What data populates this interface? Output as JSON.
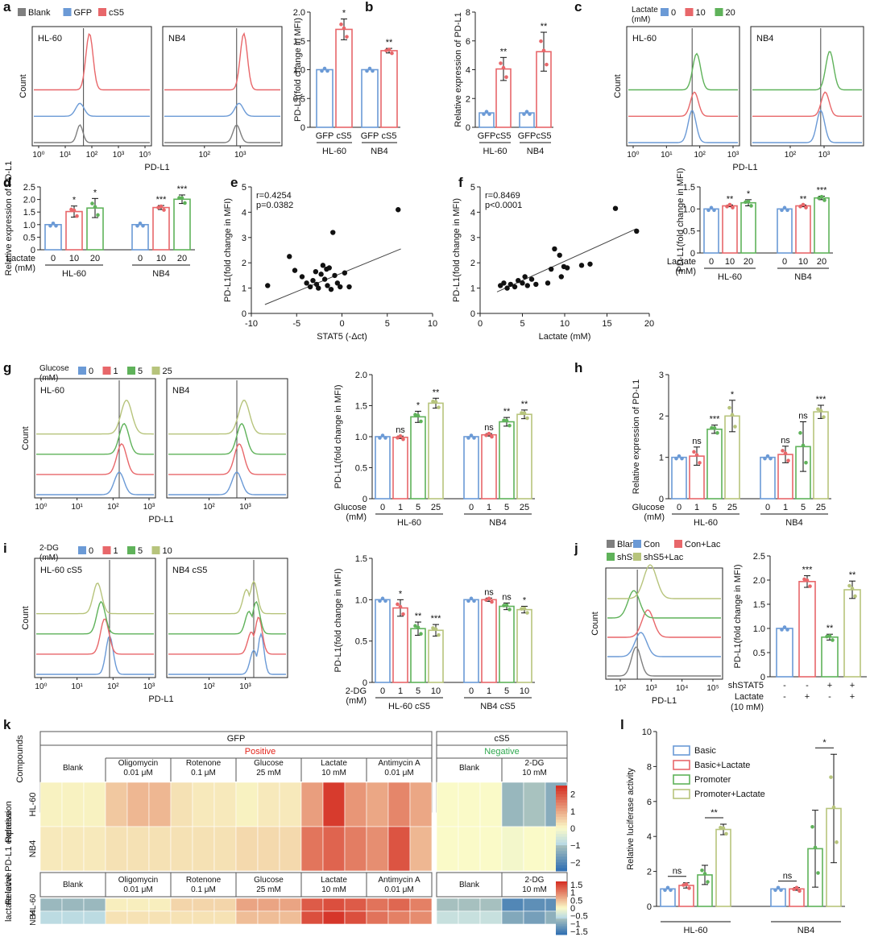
{
  "figure": {
    "panel_letters": [
      "a",
      "b",
      "c",
      "d",
      "e",
      "f",
      "g",
      "h",
      "i",
      "j",
      "k",
      "l"
    ]
  },
  "colors": {
    "blank": "#7f7f7f",
    "blue": "#6b9ad6",
    "red": "#e8676a",
    "green": "#5fb25a",
    "olive": "#b7c47c",
    "heat_high": "#d42a20",
    "heat_mid": "#fafac8",
    "heat_low": "#2e6eb2",
    "positive_text": "#e3241b",
    "negative_text": "#2fa84f"
  },
  "panel_a": {
    "legend": [
      "Blank",
      "GFP",
      "cS5"
    ],
    "cells": [
      "HL-60",
      "NB4"
    ],
    "y_label": "Count",
    "x_label": "PD-L1",
    "x_ticks_left": [
      "10⁰",
      "10¹",
      "10²",
      "10³",
      "10⁵"
    ],
    "x_ticks_right": [
      "10²",
      "10³"
    ]
  },
  "panel_c": {
    "legend_title": "Lactate\n(mM)",
    "legend": [
      "0",
      "10",
      "20"
    ],
    "cells": [
      "HL-60",
      "NB4"
    ],
    "y_label": "Count",
    "x_label": "PD-L1",
    "x_ticks_left": [
      "10⁰",
      "10¹",
      "10²",
      "10³"
    ],
    "x_ticks_right": [
      "10²",
      "10³"
    ]
  },
  "panel_g": {
    "legend_title": "Glucose\n(mM)",
    "legend": [
      "0",
      "1",
      "5",
      "25"
    ],
    "cells": [
      "HL-60",
      "NB4"
    ],
    "y_label": "Count",
    "x_label": "PD-L1",
    "x_ticks_left": [
      "10⁰",
      "10¹",
      "10²",
      "10³"
    ],
    "x_ticks_right": [
      "10²",
      "10³"
    ]
  },
  "panel_i": {
    "legend_title": "2-DG\n(mM)",
    "legend": [
      "0",
      "1",
      "5",
      "10"
    ],
    "cells": [
      "HL-60 cS5",
      "NB4 cS5"
    ],
    "y_label": "Count",
    "x_label": "PD-L1",
    "x_ticks_left": [
      "10⁰",
      "10¹",
      "10²",
      "10³"
    ],
    "x_ticks_right": [
      "10²",
      "10³"
    ]
  },
  "panel_j": {
    "legend": [
      "Blank",
      "Con",
      "Con+Lac",
      "shS5",
      "shS5+Lac"
    ],
    "y_label": "Count",
    "x_label": "PD-L1",
    "x_ticks": [
      "10²",
      "10³",
      "10⁴",
      "10⁵"
    ]
  },
  "chart_data": [
    {
      "id": "a_bar",
      "type": "bar",
      "ylabel": "PD-L1(fold change in MFI)",
      "ylim": [
        0,
        2.0
      ],
      "yticks": [
        "0",
        "0.5",
        "1.0",
        "1.5",
        "2.0"
      ],
      "groups": [
        {
          "name": "HL-60",
          "categories": [
            "GFP",
            "cS5"
          ]
        },
        {
          "name": "NB4",
          "categories": [
            "GFP",
            "cS5"
          ]
        }
      ],
      "values": [
        1.0,
        1.7,
        1.0,
        1.33
      ],
      "errors": [
        0,
        0.18,
        0,
        0.04
      ],
      "significance": [
        "",
        "*",
        "",
        "**"
      ]
    },
    {
      "id": "b_bar",
      "type": "bar",
      "ylabel": "Relative expression of PD-L1",
      "ylim": [
        0,
        8
      ],
      "yticks": [
        "0",
        "2",
        "4",
        "6",
        "8"
      ],
      "groups": [
        {
          "name": "HL-60",
          "categories": [
            "GFP",
            "cS5"
          ]
        },
        {
          "name": "NB4",
          "categories": [
            "GFP",
            "cS5"
          ]
        }
      ],
      "values": [
        1.0,
        4.05,
        1.0,
        5.25
      ],
      "errors": [
        0,
        0.8,
        0,
        1.35
      ],
      "significance": [
        "",
        "**",
        "",
        "**"
      ]
    },
    {
      "id": "d_bar",
      "type": "bar",
      "ylabel": "Relative expression of PD-L1",
      "ylim": [
        0,
        2.5
      ],
      "yticks": [
        "0",
        "0.5",
        "1.0",
        "1.5",
        "2.0",
        "2.5"
      ],
      "row_label": "Lactate\n(mM)",
      "groups": [
        {
          "name": "HL-60",
          "categories": [
            "0",
            "10",
            "20"
          ]
        },
        {
          "name": "NB4",
          "categories": [
            "0",
            "10",
            "20"
          ]
        }
      ],
      "values": [
        1.0,
        1.52,
        1.66,
        1.0,
        1.68,
        2.01
      ],
      "errors": [
        0,
        0.22,
        0.38,
        0,
        0.08,
        0.17
      ],
      "significance": [
        "",
        "*",
        "*",
        "",
        "***",
        "***"
      ]
    },
    {
      "id": "e_scatter",
      "type": "scatter",
      "xlabel": "STAT5 (-Δct)",
      "ylabel": "PD-L1(fold change in MFI)",
      "xlim": [
        -10,
        10
      ],
      "ylim": [
        0,
        5
      ],
      "xticks": [
        "-10",
        "-5",
        "0",
        "5",
        "10"
      ],
      "yticks": [
        "0",
        "1",
        "2",
        "3",
        "4",
        "5"
      ],
      "annotation": [
        "r=0.4254",
        "p=0.0382"
      ],
      "points": [
        [
          -8.2,
          1.1
        ],
        [
          -5.8,
          2.25
        ],
        [
          -5.2,
          1.7
        ],
        [
          -4.4,
          1.45
        ],
        [
          -3.9,
          1.2
        ],
        [
          -3.5,
          1.05
        ],
        [
          -3.2,
          1.3
        ],
        [
          -2.9,
          1.65
        ],
        [
          -2.6,
          1.0
        ],
        [
          -2.3,
          1.55
        ],
        [
          -2.1,
          1.9
        ],
        [
          -1.9,
          1.35
        ],
        [
          -1.6,
          1.1
        ],
        [
          -1.4,
          1.8
        ],
        [
          -1.2,
          0.95
        ],
        [
          -1.0,
          3.2
        ],
        [
          -0.8,
          1.5
        ],
        [
          -0.5,
          1.2
        ],
        [
          -0.2,
          1.05
        ],
        [
          0.3,
          1.6
        ],
        [
          0.8,
          1.05
        ],
        [
          -1.7,
          1.75
        ],
        [
          -2.8,
          1.15
        ],
        [
          6.2,
          4.1
        ]
      ],
      "fit": [
        [
          -8.5,
          0.35
        ],
        [
          6.5,
          2.55
        ]
      ]
    },
    {
      "id": "f_scatter",
      "type": "scatter",
      "xlabel": "Lactate (mM)",
      "ylabel": "PD-L1(fold change in MFI)",
      "xlim": [
        0,
        20
      ],
      "ylim": [
        0,
        5
      ],
      "xticks": [
        "0",
        "5",
        "10",
        "15",
        "20"
      ],
      "yticks": [
        "0",
        "1",
        "2",
        "3",
        "4",
        "5"
      ],
      "annotation": [
        "r=0.8469",
        "p<0.0001"
      ],
      "points": [
        [
          2.4,
          1.1
        ],
        [
          2.8,
          1.2
        ],
        [
          3.2,
          1.0
        ],
        [
          3.6,
          1.15
        ],
        [
          4.1,
          1.05
        ],
        [
          4.5,
          1.3
        ],
        [
          5.0,
          1.2
        ],
        [
          5.6,
          1.1
        ],
        [
          6.1,
          1.35
        ],
        [
          6.6,
          1.15
        ],
        [
          5.3,
          1.45
        ],
        [
          8.4,
          1.75
        ],
        [
          8.8,
          2.55
        ],
        [
          9.4,
          2.3
        ],
        [
          9.9,
          1.85
        ],
        [
          10.3,
          1.8
        ],
        [
          9.6,
          1.45
        ],
        [
          12.0,
          1.9
        ],
        [
          13.0,
          1.95
        ],
        [
          16.0,
          4.15
        ],
        [
          18.5,
          3.25
        ],
        [
          8.0,
          1.2
        ]
      ],
      "fit": [
        [
          2.0,
          0.85
        ],
        [
          18.5,
          3.35
        ]
      ]
    },
    {
      "id": "f_bar",
      "type": "bar",
      "ylabel": "PD-L1(fold change in MFI)",
      "ylim": [
        0,
        1.5
      ],
      "yticks": [
        "0",
        "0.5",
        "1.0",
        "1.5"
      ],
      "row_label": "Lactate\n(mM)",
      "groups": [
        {
          "name": "HL-60",
          "categories": [
            "0",
            "10",
            "20"
          ]
        },
        {
          "name": "NB4",
          "categories": [
            "0",
            "10",
            "20"
          ]
        }
      ],
      "values": [
        1.0,
        1.07,
        1.14,
        1.0,
        1.07,
        1.25
      ],
      "errors": [
        0,
        0.02,
        0.07,
        0,
        0.02,
        0.04
      ],
      "significance": [
        "",
        "**",
        "*",
        "",
        "**",
        "***"
      ]
    },
    {
      "id": "g_bar",
      "type": "bar",
      "ylabel": "PD-L1(fold change in MFI)",
      "ylim": [
        0,
        2.0
      ],
      "yticks": [
        "0",
        "0.5",
        "1.0",
        "1.5",
        "2.0"
      ],
      "row_label": "Glucose\n(mM)",
      "groups": [
        {
          "name": "HL-60",
          "categories": [
            "0",
            "1",
            "5",
            "25"
          ]
        },
        {
          "name": "NB4",
          "categories": [
            "0",
            "1",
            "5",
            "25"
          ]
        }
      ],
      "values": [
        1.0,
        0.99,
        1.32,
        1.54,
        1.0,
        1.03,
        1.24,
        1.36
      ],
      "errors": [
        0,
        0.02,
        0.09,
        0.08,
        0,
        0.02,
        0.07,
        0.07
      ],
      "significance": [
        "",
        "ns",
        "*",
        "**",
        "",
        "ns",
        "**",
        "**"
      ]
    },
    {
      "id": "h_bar",
      "type": "bar",
      "ylabel": "Relative expression of PD-L1",
      "ylim": [
        0,
        3
      ],
      "yticks": [
        "0",
        "1",
        "2",
        "3"
      ],
      "row_label": "Glucose\n(mM)",
      "groups": [
        {
          "name": "HL-60",
          "categories": [
            "0",
            "1",
            "5",
            "25"
          ]
        },
        {
          "name": "NB4",
          "categories": [
            "0",
            "1",
            "5",
            "25"
          ]
        }
      ],
      "values": [
        1.0,
        1.03,
        1.68,
        2.0,
        1.0,
        1.07,
        1.26,
        2.1
      ],
      "errors": [
        0,
        0.22,
        0.1,
        0.38,
        0,
        0.2,
        0.6,
        0.16
      ],
      "significance": [
        "",
        "ns",
        "***",
        "*",
        "",
        "ns",
        "ns",
        "***"
      ]
    },
    {
      "id": "i_bar",
      "type": "bar",
      "ylabel": "PD-L1(fold change in MFI)",
      "ylim": [
        0,
        1.5
      ],
      "yticks": [
        "0",
        "0.5",
        "1.0",
        "1.5"
      ],
      "row_label": "2-DG\n(mM)",
      "groups": [
        {
          "name": "HL-60 cS5",
          "categories": [
            "0",
            "1",
            "5",
            "10"
          ]
        },
        {
          "name": "NB4 cS5",
          "categories": [
            "0",
            "1",
            "5",
            "10"
          ]
        }
      ],
      "values": [
        1.0,
        0.9,
        0.65,
        0.63,
        1.0,
        1.0,
        0.92,
        0.88
      ],
      "errors": [
        0,
        0.1,
        0.08,
        0.07,
        0,
        0.02,
        0.04,
        0.04
      ],
      "significance": [
        "",
        "*",
        "**",
        "***",
        "",
        "ns",
        "ns",
        "*"
      ]
    },
    {
      "id": "j_bar",
      "type": "bar",
      "ylabel": "PD-L1(fold change in MFI)",
      "ylim": [
        0,
        2.5
      ],
      "yticks": [
        "0",
        "0.5",
        "1.0",
        "1.5",
        "2.0",
        "2.5"
      ],
      "row_labels": [
        {
          "name": "shSTAT5",
          "values": [
            "-",
            "-",
            "+",
            "+"
          ]
        },
        {
          "name": "Lactate\n(10 mM)",
          "values": [
            "-",
            "+",
            "-",
            "+"
          ]
        }
      ],
      "values": [
        1.0,
        1.97,
        0.82,
        1.8
      ],
      "errors": [
        0,
        0.12,
        0.06,
        0.18
      ],
      "significance": [
        "",
        "***",
        "**",
        "**"
      ]
    },
    {
      "id": "k_heatmap",
      "type": "heatmap",
      "side_label": "Compounds",
      "top_groups": [
        "GFP",
        "cS5"
      ],
      "sub_groups": [
        "Positive",
        "Negative"
      ],
      "columns": [
        {
          "name": "Blank",
          "sub": ""
        },
        {
          "name": "Oligomycin",
          "sub": "0.01 μM"
        },
        {
          "name": "Rotenone",
          "sub": "0.1 μM"
        },
        {
          "name": "Glucose",
          "sub": "25 mM"
        },
        {
          "name": "Lactate",
          "sub": "10 mM"
        },
        {
          "name": "Antimycin A",
          "sub": "0.01 μM"
        },
        {
          "name": "Blank",
          "sub": ""
        },
        {
          "name": "2-DG",
          "sub": "10 mM"
        }
      ],
      "expression": {
        "title": "Relative\nPD-L1 expression",
        "rows": [
          "HL-60",
          "NB4"
        ],
        "scale_ticks": [
          "2",
          "1",
          "0",
          "−1",
          "−2"
        ],
        "range": [
          -2.5,
          2.5
        ],
        "values": [
          [
            0.1,
            0.1,
            0.1,
            0.6,
            0.8,
            0.8,
            0.3,
            0.2,
            0.2,
            0.1,
            0.2,
            0.2,
            1.1,
            2.3,
            1.2,
            1.0,
            1.4,
            1.0,
            0.0,
            0.0,
            0.0,
            -1.2,
            -1.0,
            -1.4
          ],
          [
            0.2,
            0.2,
            0.2,
            0.3,
            0.3,
            0.3,
            0.3,
            0.3,
            0.3,
            0.4,
            0.4,
            0.4,
            1.6,
            1.8,
            1.5,
            1.3,
            2.0,
            0.8,
            0.0,
            0.0,
            0.0,
            -0.1,
            0.0,
            0.0
          ]
        ]
      },
      "lactate": {
        "title": "Relative\nlactate level",
        "rows": [
          "HL-60",
          "NB4"
        ],
        "scale_ticks": [
          "1.5",
          "1",
          "0.5",
          "0",
          "−0.5",
          "−1",
          "−1.5"
        ],
        "range": [
          -1.7,
          1.7
        ],
        "values": [
          [
            -0.8,
            -0.8,
            -0.8,
            0.1,
            0.1,
            0.1,
            0.3,
            0.3,
            0.3,
            0.7,
            0.7,
            0.7,
            1.3,
            1.4,
            1.3,
            1.1,
            1.2,
            1.0,
            -0.7,
            -0.7,
            -0.7,
            -1.4,
            -1.3,
            -1.3
          ],
          [
            -0.6,
            -0.6,
            -0.6,
            0.2,
            0.2,
            0.2,
            0.2,
            0.2,
            0.2,
            0.5,
            0.5,
            0.5,
            1.4,
            1.6,
            1.4,
            1.1,
            1.0,
            0.9,
            -0.5,
            -0.5,
            -0.5,
            -1.0,
            -1.1,
            -0.9
          ]
        ]
      }
    },
    {
      "id": "l_bar",
      "type": "bar",
      "ylabel": "Relative luciferase activity",
      "ylim": [
        0,
        10
      ],
      "yticks": [
        "0",
        "2",
        "4",
        "6",
        "8",
        "10"
      ],
      "legend": [
        "Basic",
        "Basic+Lactate",
        "Promoter",
        "Promoter+Lactate"
      ],
      "groups": [
        {
          "name": "HL-60",
          "categories": [
            "",
            "",
            "",
            ""
          ]
        },
        {
          "name": "NB4",
          "categories": [
            "",
            "",
            "",
            ""
          ]
        }
      ],
      "values": [
        1.0,
        1.2,
        1.8,
        4.4,
        1.0,
        1.0,
        3.3,
        5.6
      ],
      "errors": [
        0,
        0.15,
        0.55,
        0.3,
        0,
        0.08,
        2.2,
        3.1
      ],
      "significance_pairs": [
        {
          "label": "ns",
          "a": 0,
          "b": 1
        },
        {
          "label": "**",
          "a": 2,
          "b": 3
        },
        {
          "label": "ns",
          "a": 4,
          "b": 5
        },
        {
          "label": "*",
          "a": 6,
          "b": 7
        }
      ]
    }
  ]
}
